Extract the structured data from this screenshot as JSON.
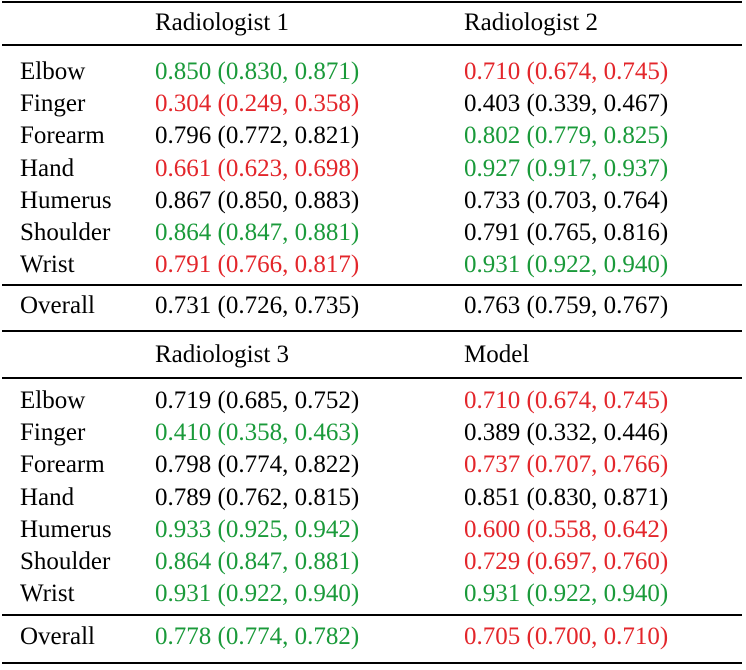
{
  "colors": {
    "good": "#1a9a3a",
    "bad": "#e3262b",
    "neutral": "#000000"
  },
  "blocks": [
    {
      "headers": [
        "Radiologist 1",
        "Radiologist 2"
      ],
      "rows": [
        {
          "label": "Elbow",
          "cells": [
            {
              "text": "0.850 (0.830, 0.871)",
              "status": "good"
            },
            {
              "text": "0.710 (0.674, 0.745)",
              "status": "bad"
            }
          ]
        },
        {
          "label": "Finger",
          "cells": [
            {
              "text": "0.304 (0.249, 0.358)",
              "status": "bad"
            },
            {
              "text": "0.403 (0.339, 0.467)",
              "status": "neutral"
            }
          ]
        },
        {
          "label": "Forearm",
          "cells": [
            {
              "text": "0.796 (0.772, 0.821)",
              "status": "neutral"
            },
            {
              "text": "0.802 (0.779, 0.825)",
              "status": "good"
            }
          ]
        },
        {
          "label": "Hand",
          "cells": [
            {
              "text": "0.661 (0.623, 0.698)",
              "status": "bad"
            },
            {
              "text": "0.927 (0.917, 0.937)",
              "status": "good"
            }
          ]
        },
        {
          "label": "Humerus",
          "cells": [
            {
              "text": "0.867 (0.850, 0.883)",
              "status": "neutral"
            },
            {
              "text": "0.733 (0.703, 0.764)",
              "status": "neutral"
            }
          ]
        },
        {
          "label": "Shoulder",
          "cells": [
            {
              "text": "0.864 (0.847, 0.881)",
              "status": "good"
            },
            {
              "text": "0.791 (0.765, 0.816)",
              "status": "neutral"
            }
          ]
        },
        {
          "label": "Wrist",
          "cells": [
            {
              "text": "0.791 (0.766, 0.817)",
              "status": "bad"
            },
            {
              "text": "0.931 (0.922, 0.940)",
              "status": "good"
            }
          ]
        }
      ],
      "overall": {
        "label": "Overall",
        "cells": [
          {
            "text": "0.731 (0.726, 0.735)",
            "status": "neutral"
          },
          {
            "text": "0.763 (0.759, 0.767)",
            "status": "neutral"
          }
        ]
      }
    },
    {
      "headers": [
        "Radiologist 3",
        "Model"
      ],
      "rows": [
        {
          "label": "Elbow",
          "cells": [
            {
              "text": "0.719 (0.685, 0.752)",
              "status": "neutral"
            },
            {
              "text": "0.710 (0.674, 0.745)",
              "status": "bad"
            }
          ]
        },
        {
          "label": "Finger",
          "cells": [
            {
              "text": "0.410 (0.358, 0.463)",
              "status": "good"
            },
            {
              "text": "0.389 (0.332, 0.446)",
              "status": "neutral"
            }
          ]
        },
        {
          "label": "Forearm",
          "cells": [
            {
              "text": "0.798 (0.774, 0.822)",
              "status": "neutral"
            },
            {
              "text": "0.737 (0.707, 0.766)",
              "status": "bad"
            }
          ]
        },
        {
          "label": "Hand",
          "cells": [
            {
              "text": "0.789 (0.762, 0.815)",
              "status": "neutral"
            },
            {
              "text": "0.851 (0.830, 0.871)",
              "status": "neutral"
            }
          ]
        },
        {
          "label": "Humerus",
          "cells": [
            {
              "text": "0.933 (0.925, 0.942)",
              "status": "good"
            },
            {
              "text": "0.600 (0.558, 0.642)",
              "status": "bad"
            }
          ]
        },
        {
          "label": "Shoulder",
          "cells": [
            {
              "text": "0.864 (0.847, 0.881)",
              "status": "good"
            },
            {
              "text": "0.729 (0.697, 0.760)",
              "status": "bad"
            }
          ]
        },
        {
          "label": "Wrist",
          "cells": [
            {
              "text": "0.931 (0.922, 0.940)",
              "status": "good"
            },
            {
              "text": "0.931 (0.922, 0.940)",
              "status": "good"
            }
          ]
        }
      ],
      "overall": {
        "label": "Overall",
        "cells": [
          {
            "text": "0.778 (0.774, 0.782)",
            "status": "good"
          },
          {
            "text": "0.705 (0.700, 0.710)",
            "status": "bad"
          }
        ]
      }
    }
  ]
}
